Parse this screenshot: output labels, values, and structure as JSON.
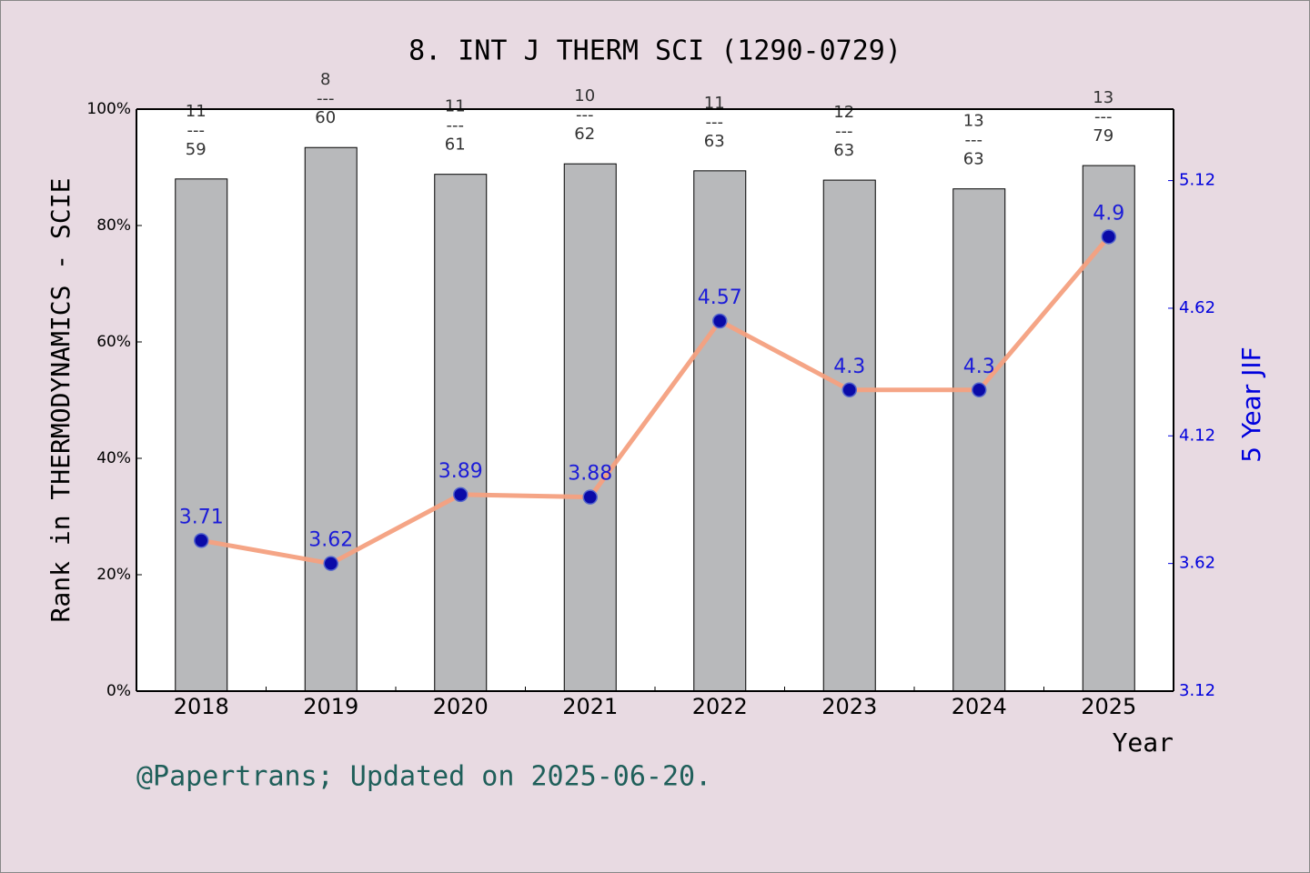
{
  "chart_data": {
    "type": "bar",
    "title": "8. INT J THERM SCI (1290-0729)",
    "ylabel": "Rank in THERMODYNAMICS - SCIE",
    "y2label": "5 Year JIF",
    "xlabel": "Year",
    "footnote": "@Papertrans; Updated on 2025-06-20.",
    "categories": [
      "2018",
      "2019",
      "2020",
      "2021",
      "2022",
      "2023",
      "2024",
      "2025"
    ],
    "series": [
      {
        "type": "bar",
        "color": "#b8b9bb",
        "values": [
          88,
          93.4,
          88.8,
          90.6,
          89.4,
          87.8,
          86.3,
          90.3
        ],
        "annotations": [
          [
            "11",
            "---",
            "59"
          ],
          [
            "8",
            "---",
            "60"
          ],
          [
            "11",
            "---",
            "61"
          ],
          [
            "10",
            "---",
            "62"
          ],
          [
            "11",
            "---",
            "63"
          ],
          [
            "12",
            "---",
            "63"
          ],
          [
            "13",
            "---",
            "63"
          ],
          [
            "13",
            "---",
            "79"
          ]
        ]
      },
      {
        "type": "line",
        "axis": "y2",
        "color": "#f4a07f",
        "marker_color": "#0a0aa8",
        "label_color": "#0000dd",
        "values": [
          3.71,
          3.62,
          3.89,
          3.88,
          4.57,
          4.3,
          4.3,
          4.9
        ]
      }
    ],
    "ylim": [
      0,
      100
    ],
    "yticks": [
      {
        "value": 0,
        "label": "0%"
      },
      {
        "value": 20,
        "label": "20%"
      },
      {
        "value": 40,
        "label": "40%"
      },
      {
        "value": 60,
        "label": "60%"
      },
      {
        "value": 80,
        "label": "80%"
      },
      {
        "value": 100,
        "label": "100%"
      }
    ],
    "y2lim": [
      3.12,
      5.4
    ],
    "y2ticks": [
      3.12,
      3.62,
      4.12,
      4.62,
      5.12
    ]
  }
}
